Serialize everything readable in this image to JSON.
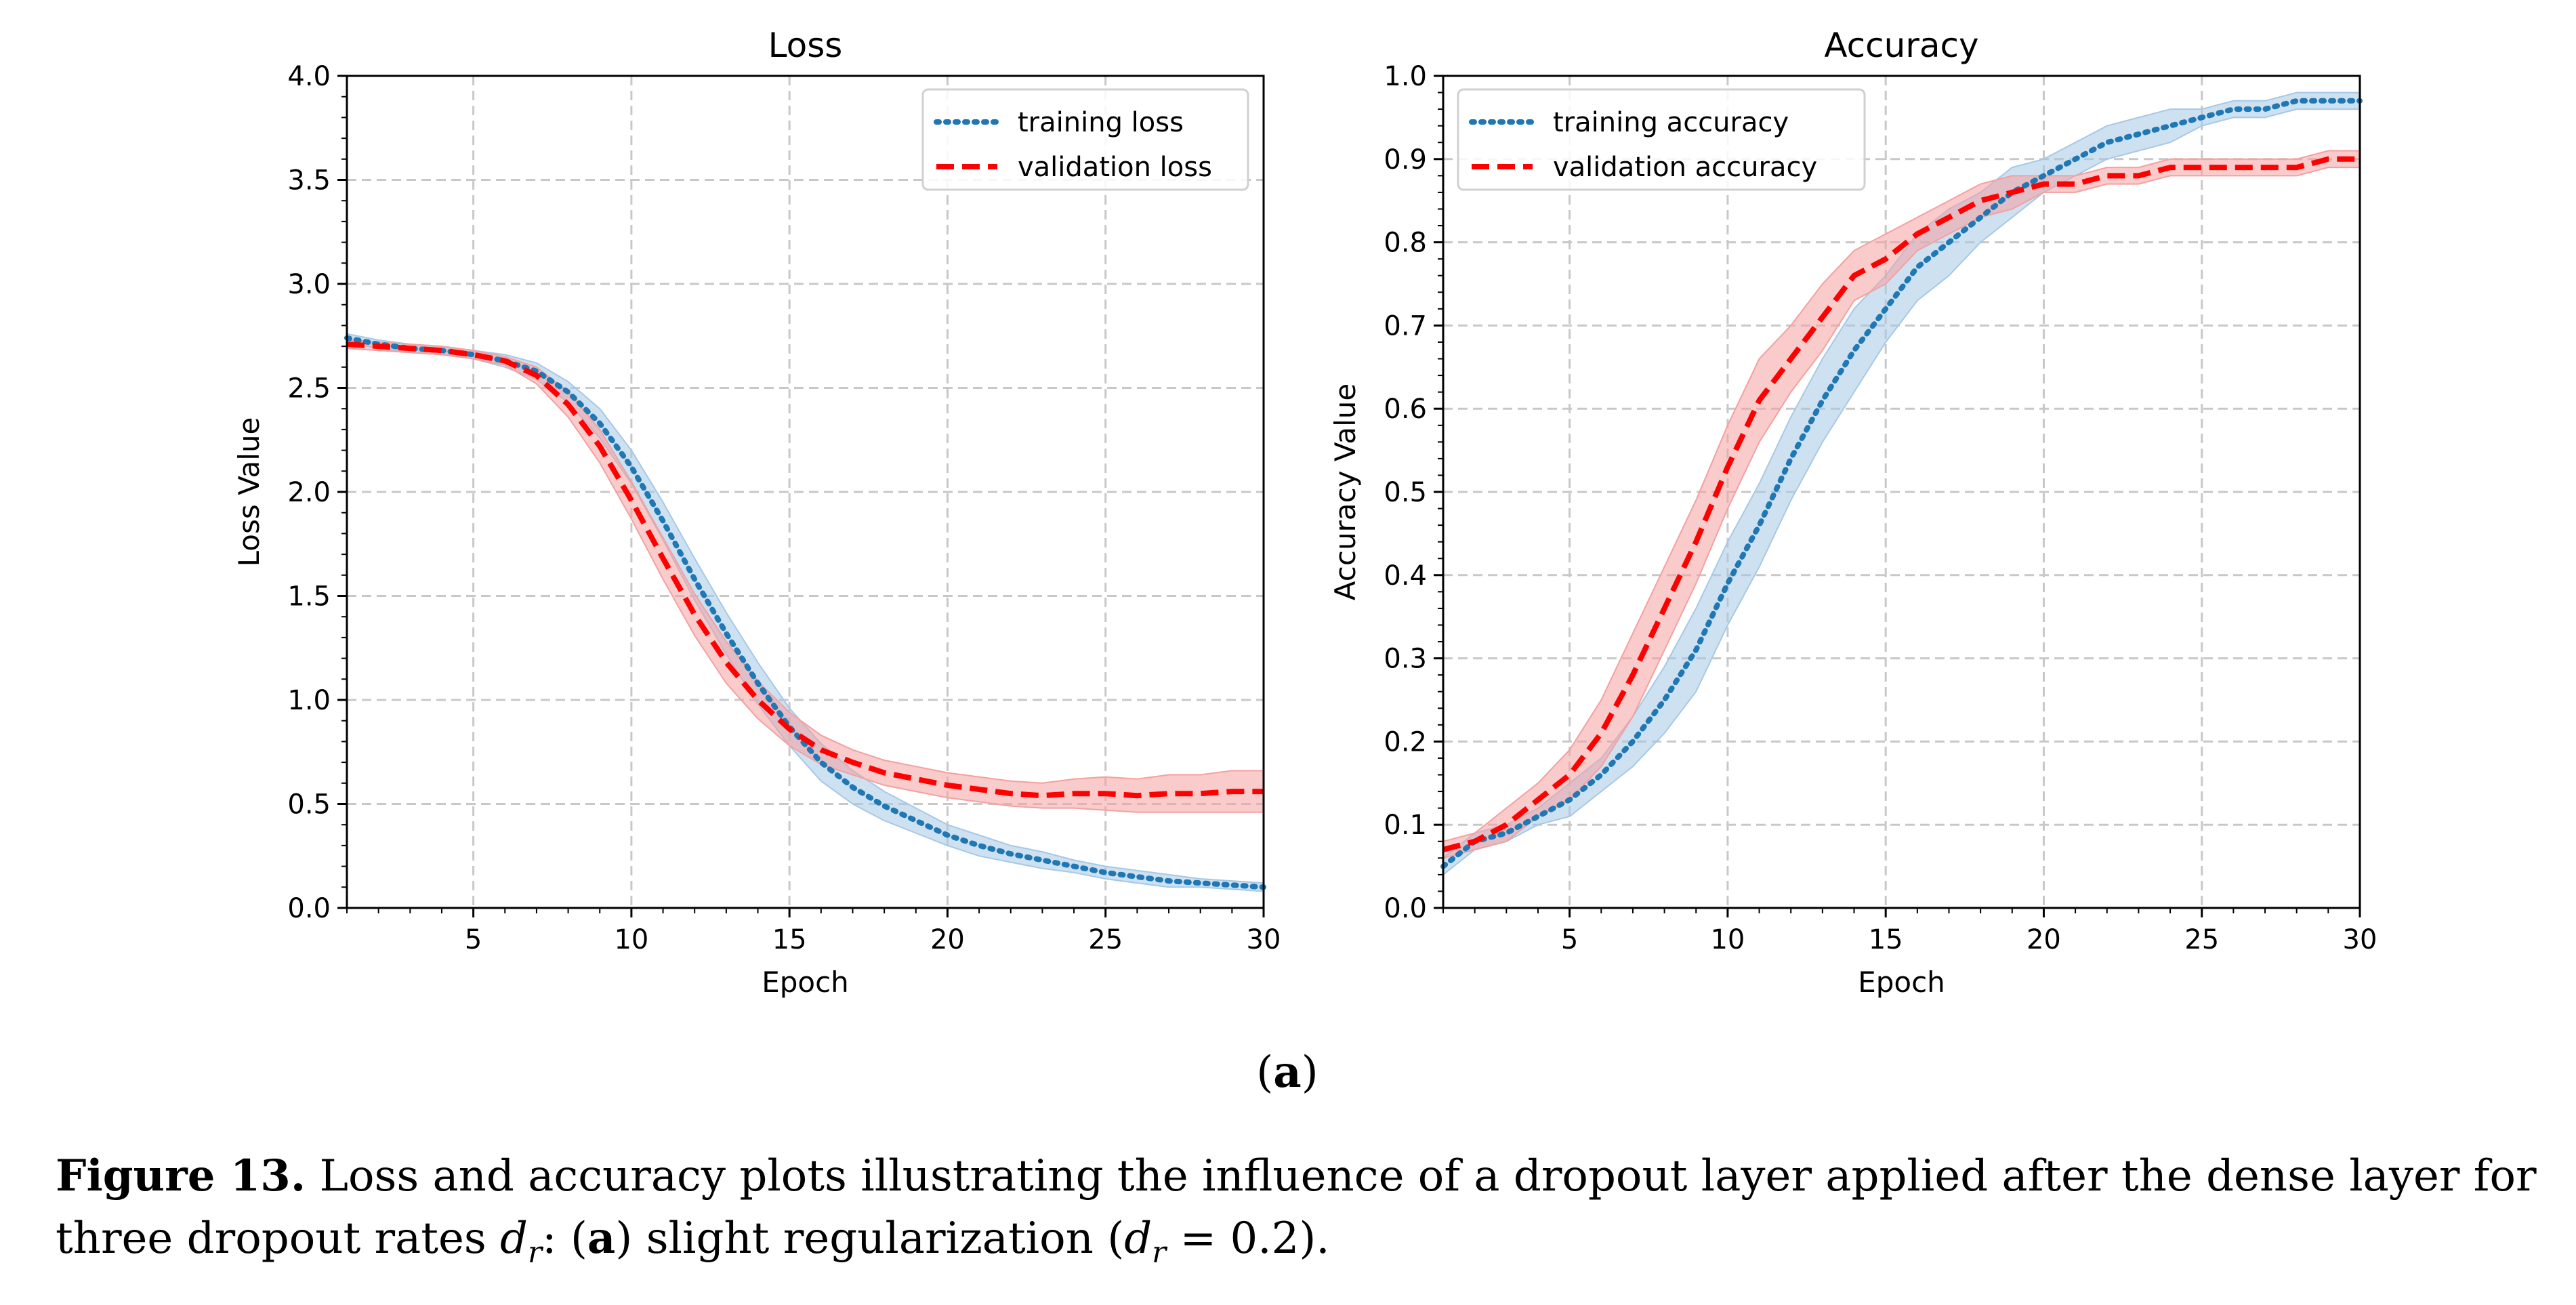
{
  "chart_data": [
    {
      "type": "line",
      "title": "Loss",
      "xlabel": "Epoch",
      "ylabel": "Loss Value",
      "xlim": [
        1,
        30
      ],
      "ylim": [
        0.0,
        4.0
      ],
      "xticks": [
        5,
        10,
        15,
        20,
        25,
        30
      ],
      "yticks": [
        0.0,
        0.5,
        1.0,
        1.5,
        2.0,
        2.5,
        3.0,
        3.5,
        4.0
      ],
      "ytick_labels": [
        "0.0",
        "0.5",
        "1.0",
        "1.5",
        "2.0",
        "2.5",
        "3.0",
        "3.5",
        "4.0"
      ],
      "grid": true,
      "legend_position": "top-right",
      "x": [
        1,
        2,
        3,
        4,
        5,
        6,
        7,
        8,
        9,
        10,
        11,
        12,
        13,
        14,
        15,
        16,
        17,
        18,
        19,
        20,
        21,
        22,
        23,
        24,
        25,
        26,
        27,
        28,
        29,
        30
      ],
      "series": [
        {
          "name": "training loss",
          "style": "dotted",
          "color": "#1f77b4",
          "band_color": "#a6c8e6",
          "values": [
            2.74,
            2.71,
            2.69,
            2.68,
            2.66,
            2.63,
            2.58,
            2.48,
            2.33,
            2.12,
            1.86,
            1.58,
            1.32,
            1.08,
            0.87,
            0.7,
            0.58,
            0.49,
            0.42,
            0.35,
            0.3,
            0.26,
            0.23,
            0.2,
            0.17,
            0.15,
            0.13,
            0.12,
            0.11,
            0.1
          ],
          "band_halfwidth": [
            0.02,
            0.02,
            0.02,
            0.02,
            0.02,
            0.03,
            0.04,
            0.05,
            0.07,
            0.08,
            0.09,
            0.1,
            0.1,
            0.1,
            0.09,
            0.09,
            0.08,
            0.07,
            0.06,
            0.05,
            0.05,
            0.04,
            0.04,
            0.03,
            0.03,
            0.03,
            0.03,
            0.02,
            0.02,
            0.02
          ]
        },
        {
          "name": "validation loss",
          "style": "dashed",
          "color": "#ff0000",
          "band_color": "#f4a0a0",
          "values": [
            2.71,
            2.7,
            2.69,
            2.68,
            2.66,
            2.63,
            2.56,
            2.42,
            2.22,
            1.96,
            1.68,
            1.41,
            1.18,
            1.0,
            0.86,
            0.76,
            0.7,
            0.65,
            0.62,
            0.59,
            0.57,
            0.55,
            0.54,
            0.55,
            0.55,
            0.54,
            0.55,
            0.55,
            0.56,
            0.56
          ],
          "band_halfwidth": [
            0.02,
            0.02,
            0.02,
            0.02,
            0.02,
            0.02,
            0.04,
            0.06,
            0.08,
            0.09,
            0.1,
            0.1,
            0.1,
            0.09,
            0.08,
            0.07,
            0.06,
            0.06,
            0.06,
            0.06,
            0.06,
            0.06,
            0.06,
            0.07,
            0.08,
            0.08,
            0.09,
            0.09,
            0.1,
            0.1
          ]
        }
      ]
    },
    {
      "type": "line",
      "title": "Accuracy",
      "xlabel": "Epoch",
      "ylabel": "Accuracy Value",
      "xlim": [
        1,
        30
      ],
      "ylim": [
        0.0,
        1.0
      ],
      "xticks": [
        5,
        10,
        15,
        20,
        25,
        30
      ],
      "yticks": [
        0.0,
        0.1,
        0.2,
        0.3,
        0.4,
        0.5,
        0.6,
        0.7,
        0.8,
        0.9,
        1.0
      ],
      "ytick_labels": [
        "0.0",
        "0.1",
        "0.2",
        "0.3",
        "0.4",
        "0.5",
        "0.6",
        "0.7",
        "0.8",
        "0.9",
        "1.0"
      ],
      "grid": true,
      "legend_position": "top-left",
      "x": [
        1,
        2,
        3,
        4,
        5,
        6,
        7,
        8,
        9,
        10,
        11,
        12,
        13,
        14,
        15,
        16,
        17,
        18,
        19,
        20,
        21,
        22,
        23,
        24,
        25,
        26,
        27,
        28,
        29,
        30
      ],
      "series": [
        {
          "name": "training accuracy",
          "style": "dotted",
          "color": "#1f77b4",
          "band_color": "#a6c8e6",
          "values": [
            0.05,
            0.08,
            0.09,
            0.11,
            0.13,
            0.16,
            0.2,
            0.25,
            0.31,
            0.39,
            0.46,
            0.54,
            0.61,
            0.67,
            0.72,
            0.77,
            0.8,
            0.83,
            0.86,
            0.88,
            0.9,
            0.92,
            0.93,
            0.94,
            0.95,
            0.96,
            0.96,
            0.97,
            0.97,
            0.97
          ],
          "band_halfwidth": [
            0.01,
            0.01,
            0.01,
            0.01,
            0.02,
            0.02,
            0.03,
            0.04,
            0.05,
            0.05,
            0.05,
            0.05,
            0.05,
            0.05,
            0.04,
            0.04,
            0.04,
            0.03,
            0.03,
            0.02,
            0.02,
            0.02,
            0.02,
            0.02,
            0.01,
            0.01,
            0.01,
            0.01,
            0.01,
            0.01
          ]
        },
        {
          "name": "validation accuracy",
          "style": "dashed",
          "color": "#ff0000",
          "band_color": "#f4a0a0",
          "values": [
            0.07,
            0.08,
            0.1,
            0.13,
            0.16,
            0.21,
            0.28,
            0.36,
            0.44,
            0.53,
            0.61,
            0.66,
            0.71,
            0.76,
            0.78,
            0.81,
            0.83,
            0.85,
            0.86,
            0.87,
            0.87,
            0.88,
            0.88,
            0.89,
            0.89,
            0.89,
            0.89,
            0.89,
            0.9,
            0.9
          ],
          "band_halfwidth": [
            0.01,
            0.01,
            0.02,
            0.02,
            0.03,
            0.04,
            0.05,
            0.05,
            0.05,
            0.05,
            0.05,
            0.04,
            0.04,
            0.03,
            0.03,
            0.02,
            0.02,
            0.02,
            0.02,
            0.01,
            0.01,
            0.01,
            0.01,
            0.01,
            0.01,
            0.01,
            0.01,
            0.01,
            0.01,
            0.01
          ]
        }
      ]
    }
  ],
  "subfigure_label": "(a)",
  "caption": {
    "label": "Figure 13.",
    "text_line1": "Loss and accuracy plots illustrating the influence of a dropout layer applied after the dense layer for",
    "text_line2_pre": "three dropout rates ",
    "symbol": "d",
    "symbol_sub": "r",
    "text_line2_mid": ": (",
    "panel": "a",
    "text_line2_post": ") slight regularization (",
    "text_line2_eq": " = 0.2)."
  }
}
